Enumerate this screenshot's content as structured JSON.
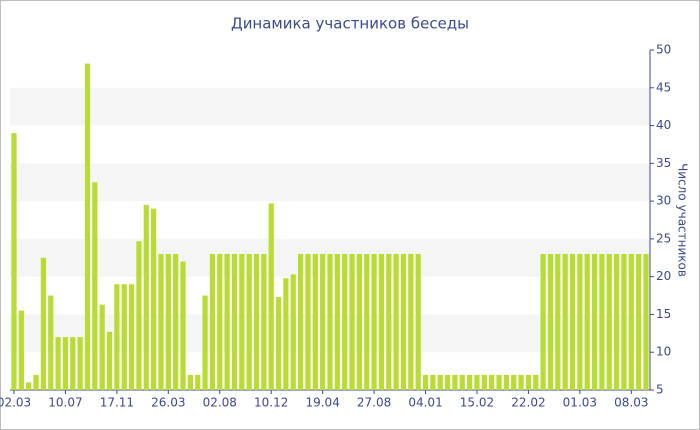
{
  "chart_data": {
    "type": "bar",
    "title": "Динамика участников беседы",
    "y_label": "Число участников",
    "categories": [
      "02.03",
      null,
      null,
      null,
      null,
      null,
      null,
      "10.07",
      null,
      null,
      null,
      null,
      null,
      null,
      "17.11",
      null,
      null,
      null,
      null,
      null,
      null,
      "26.03",
      null,
      null,
      null,
      null,
      null,
      null,
      "02.08",
      null,
      null,
      null,
      null,
      null,
      null,
      "10.12",
      null,
      null,
      null,
      null,
      null,
      null,
      "19.04",
      null,
      null,
      null,
      null,
      null,
      null,
      "27.08",
      null,
      null,
      null,
      null,
      null,
      null,
      "04.01",
      null,
      null,
      null,
      null,
      null,
      null,
      "15.02",
      null,
      null,
      null,
      null,
      null,
      null,
      "22.02",
      null,
      null,
      null,
      null,
      null,
      null,
      "01.03",
      null,
      null,
      null,
      null,
      null,
      null,
      "08.03",
      null,
      null
    ],
    "values": [
      39,
      15.5,
      6,
      7,
      22.5,
      17.5,
      12,
      12,
      12,
      12,
      48.2,
      32.5,
      16.3,
      12.7,
      19,
      19,
      19,
      24.7,
      29.5,
      29,
      23,
      23,
      23,
      22,
      7,
      7,
      17.5,
      23,
      23,
      23,
      23,
      23,
      23,
      23,
      23,
      29.7,
      17.3,
      19.8,
      20.3,
      23,
      23,
      23,
      23,
      23,
      23,
      23,
      23,
      23,
      23,
      23,
      23,
      23,
      23,
      23,
      23,
      23,
      7,
      7,
      7,
      7,
      7,
      7,
      7,
      7,
      7,
      7,
      7,
      7,
      7,
      7,
      7,
      7,
      23,
      23,
      23,
      23,
      23,
      23,
      23,
      23,
      23,
      23,
      23,
      23,
      23,
      23,
      23
    ],
    "color": "#b8dc34",
    "ylim": [
      5,
      50
    ],
    "yticks": [
      5,
      10,
      15,
      20,
      25,
      30,
      35,
      40,
      45,
      50
    ],
    "y_axis_side": "right",
    "bands": true
  }
}
